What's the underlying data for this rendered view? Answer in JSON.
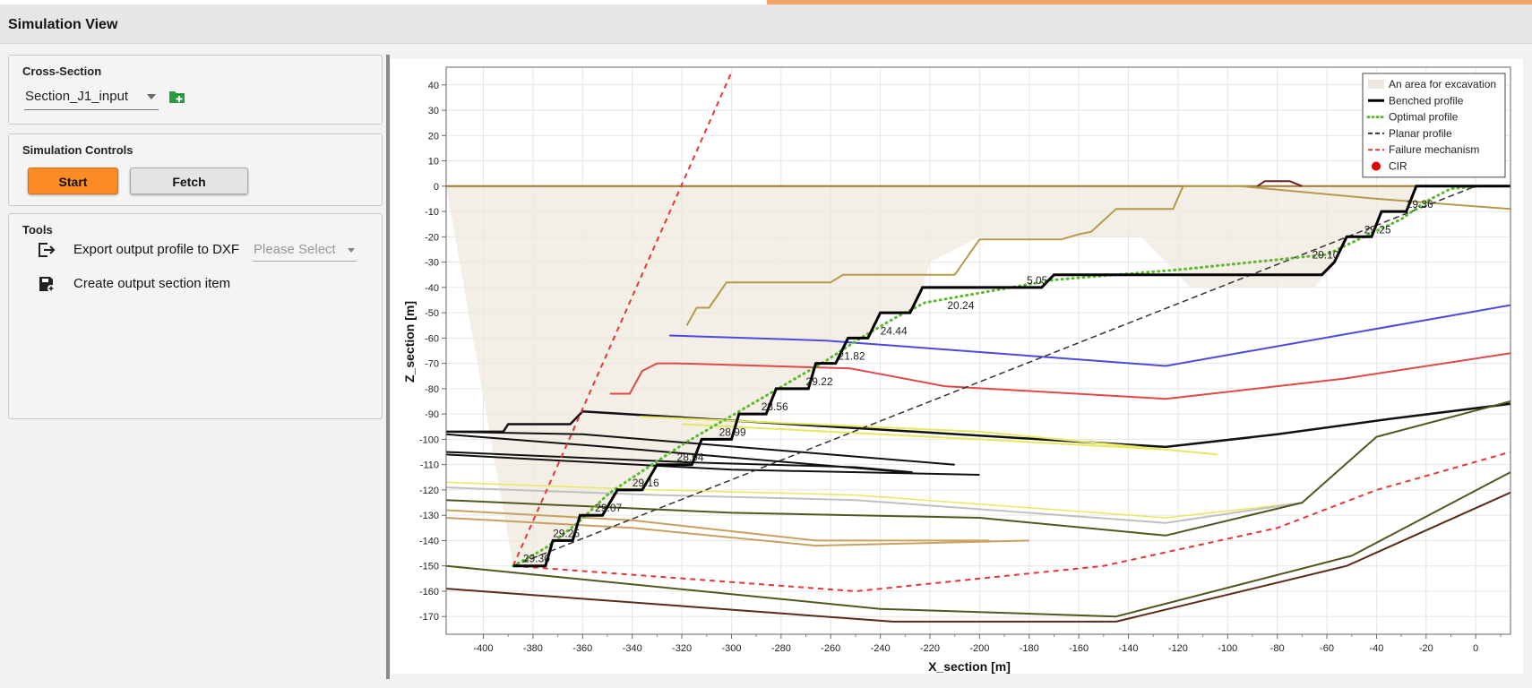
{
  "app": {
    "title": "Simulation View"
  },
  "cross_section": {
    "title": "Cross-Section",
    "selected": "Section_J1_input",
    "add_icon": "folder-add-icon"
  },
  "simulation_controls": {
    "title": "Simulation Controls",
    "start_label": "Start",
    "fetch_label": "Fetch",
    "accent": "#fb8c26"
  },
  "tools": {
    "title": "Tools",
    "export_label": "Export output profile to DXF",
    "export_placeholder": "Please Select",
    "create_label": "Create output section item",
    "export_icon": "export-icon",
    "create_icon": "save-icon"
  },
  "chart_data": {
    "type": "line",
    "xlabel": "X_section [m]",
    "ylabel": "Z_section [m]",
    "xlim": [
      -415,
      14
    ],
    "ylim": [
      -177,
      47
    ],
    "xticks": [
      -400,
      -380,
      -360,
      -340,
      -320,
      -300,
      -280,
      -260,
      -240,
      -220,
      -200,
      -180,
      -160,
      -140,
      -120,
      -100,
      -80,
      -60,
      -40,
      -20,
      0
    ],
    "yticks": [
      40,
      30,
      20,
      10,
      0,
      -10,
      -20,
      -30,
      -40,
      -50,
      -60,
      -70,
      -80,
      -90,
      -100,
      -110,
      -120,
      -130,
      -140,
      -150,
      -160,
      -170
    ],
    "grid": true,
    "legend_position": "top-right",
    "legend": [
      {
        "name": "An area for excavation",
        "style": "area",
        "color": "#efe8de"
      },
      {
        "name": "Benched profile",
        "style": "thick-solid",
        "color": "#000000"
      },
      {
        "name": "Optimal profile",
        "style": "dotted",
        "color": "#5cb82c"
      },
      {
        "name": "Planar profile",
        "style": "dashed",
        "color": "#333333"
      },
      {
        "name": "Failure mechanism",
        "style": "dashed",
        "color": "#e83434"
      },
      {
        "name": "CIR",
        "style": "marker",
        "color": "#e30000"
      }
    ],
    "excavation_area": [
      [
        -415,
        0
      ],
      [
        -388,
        -150
      ],
      [
        -375,
        -150
      ],
      [
        -372,
        -140
      ],
      [
        -364,
        -140
      ],
      [
        -361,
        -130
      ],
      [
        -352,
        -130
      ],
      [
        -346,
        -120
      ],
      [
        -336,
        -120
      ],
      [
        -330,
        -110
      ],
      [
        -316,
        -110
      ],
      [
        -312,
        -100
      ],
      [
        -300,
        -100
      ],
      [
        -297,
        -90
      ],
      [
        -286,
        -90
      ],
      [
        -282,
        -80
      ],
      [
        -269,
        -80
      ],
      [
        -266,
        -70
      ],
      [
        -258,
        -70
      ],
      [
        -253,
        -60
      ],
      [
        -245,
        -60
      ],
      [
        -240,
        -50
      ],
      [
        -228,
        -50
      ],
      [
        -223,
        -40
      ],
      [
        -220,
        -30
      ],
      [
        -200,
        -20
      ],
      [
        -135,
        -20
      ],
      [
        -115,
        -40
      ],
      [
        -65,
        -40
      ],
      [
        -57,
        -30
      ],
      [
        -52,
        -20
      ],
      [
        -42,
        -20
      ],
      [
        -38,
        -10
      ],
      [
        -28,
        -10
      ],
      [
        -24,
        0
      ],
      [
        -415,
        0
      ]
    ],
    "benched_profile": [
      [
        -388,
        -150
      ],
      [
        -375,
        -150
      ],
      [
        -372,
        -140
      ],
      [
        -364,
        -140
      ],
      [
        -361,
        -130
      ],
      [
        -352,
        -130
      ],
      [
        -346,
        -120
      ],
      [
        -336,
        -120
      ],
      [
        -330,
        -110
      ],
      [
        -316,
        -110
      ],
      [
        -312,
        -100
      ],
      [
        -300,
        -100
      ],
      [
        -297,
        -90
      ],
      [
        -286,
        -90
      ],
      [
        -282,
        -80
      ],
      [
        -269,
        -80
      ],
      [
        -266,
        -70
      ],
      [
        -258,
        -70
      ],
      [
        -253,
        -60
      ],
      [
        -245,
        -60
      ],
      [
        -240,
        -50
      ],
      [
        -228,
        -50
      ],
      [
        -223,
        -40
      ],
      [
        -175,
        -40
      ],
      [
        -170,
        -35
      ],
      [
        -62,
        -35
      ],
      [
        -57,
        -30
      ],
      [
        -52,
        -20
      ],
      [
        -42,
        -20
      ],
      [
        -38,
        -10
      ],
      [
        -28,
        -10
      ],
      [
        -24,
        0
      ],
      [
        0,
        0
      ],
      [
        14,
        0
      ]
    ],
    "optimal_profile": [
      [
        -388,
        -150
      ],
      [
        -375,
        -143
      ],
      [
        -362,
        -133
      ],
      [
        -349,
        -121
      ],
      [
        -332,
        -110
      ],
      [
        -318,
        -101
      ],
      [
        -304,
        -93
      ],
      [
        -290,
        -85
      ],
      [
        -276,
        -77
      ],
      [
        -262,
        -69
      ],
      [
        -248,
        -60
      ],
      [
        -234,
        -52
      ],
      [
        -222,
        -46
      ],
      [
        -170,
        -37
      ],
      [
        -120,
        -33
      ],
      [
        -80,
        -29
      ],
      [
        -60,
        -27
      ],
      [
        -45,
        -20
      ],
      [
        -30,
        -13
      ],
      [
        -20,
        -6
      ],
      [
        -10,
        -1
      ],
      [
        2,
        0
      ],
      [
        14,
        0
      ]
    ],
    "planar_profile": [
      [
        -388,
        -150
      ],
      [
        0,
        0
      ]
    ],
    "failure_mechanism": [
      [
        [
          -388,
          -150
        ],
        [
          -300,
          45
        ]
      ],
      [
        [
          -388,
          -150
        ],
        [
          -250,
          -160
        ],
        [
          -150,
          -150
        ],
        [
          -80,
          -135
        ],
        [
          -40,
          -120
        ],
        [
          14,
          -105
        ]
      ]
    ],
    "bench_labels": [
      {
        "x": -384,
        "y": -150,
        "text": "29.30"
      },
      {
        "x": -372,
        "y": -140,
        "text": "29.25"
      },
      {
        "x": -355,
        "y": -130,
        "text": "29.07"
      },
      {
        "x": -340,
        "y": -120,
        "text": "29.16"
      },
      {
        "x": -322,
        "y": -110,
        "text": "28.94"
      },
      {
        "x": -305,
        "y": -100,
        "text": "28.99"
      },
      {
        "x": -288,
        "y": -90,
        "text": "28.56"
      },
      {
        "x": -270,
        "y": -80,
        "text": "29.22"
      },
      {
        "x": -257,
        "y": -70,
        "text": "21.82"
      },
      {
        "x": -240,
        "y": -60,
        "text": "24.44"
      },
      {
        "x": -213,
        "y": -50,
        "text": "20.24"
      },
      {
        "x": -181,
        "y": -40,
        "text": "5.05"
      },
      {
        "x": -66,
        "y": -30,
        "text": "29.10"
      },
      {
        "x": -45,
        "y": -20,
        "text": "29.25"
      },
      {
        "x": -28,
        "y": -10,
        "text": "29.36"
      }
    ],
    "layers": [
      {
        "color": "#a0782c",
        "w": 2,
        "pts": [
          [
            -415,
            0
          ],
          [
            14,
            0
          ]
        ]
      },
      {
        "color": "#b59a4a",
        "w": 2,
        "pts": [
          [
            -318,
            -55
          ],
          [
            -314,
            -48
          ],
          [
            -309,
            -48
          ],
          [
            -302,
            -38
          ],
          [
            -260,
            -38
          ],
          [
            -255,
            -35
          ],
          [
            -210,
            -35
          ],
          [
            -200,
            -21
          ],
          [
            -167,
            -21
          ],
          [
            -160,
            -19
          ],
          [
            -155,
            -18
          ],
          [
            -145,
            -9
          ],
          [
            -122,
            -9
          ],
          [
            -118,
            0
          ],
          [
            -95,
            0
          ],
          [
            -40,
            -5
          ],
          [
            14,
            -9
          ]
        ]
      },
      {
        "color": "#4a4ae0",
        "w": 2,
        "pts": [
          [
            -325,
            -59
          ],
          [
            -262,
            -61
          ],
          [
            -125,
            -71
          ],
          [
            14,
            -47
          ]
        ]
      },
      {
        "color": "#e04848",
        "w": 2,
        "pts": [
          [
            -349,
            -82
          ],
          [
            -341,
            -82
          ],
          [
            -336,
            -73
          ],
          [
            -330,
            -70
          ],
          [
            -322,
            -70
          ],
          [
            -252,
            -72
          ],
          [
            -214,
            -79
          ],
          [
            -125,
            -84
          ],
          [
            -53,
            -76
          ],
          [
            14,
            -66
          ]
        ]
      },
      {
        "color": "#111111",
        "w": 2.5,
        "pts": [
          [
            -415,
            -97
          ],
          [
            -392,
            -97
          ],
          [
            -390,
            -94
          ],
          [
            -365,
            -94
          ],
          [
            -360,
            -89
          ],
          [
            -125,
            -103
          ],
          [
            -80,
            -98
          ],
          [
            -35,
            -92
          ],
          [
            14,
            -86
          ]
        ]
      },
      {
        "color": "#111111",
        "w": 2,
        "pts": [
          [
            -415,
            -97
          ],
          [
            -360,
            -98
          ],
          [
            -210,
            -110
          ]
        ]
      },
      {
        "color": "#111111",
        "w": 2,
        "pts": [
          [
            -415,
            -98
          ],
          [
            -350,
            -103
          ],
          [
            -230,
            -113
          ]
        ]
      },
      {
        "color": "#111111",
        "w": 2,
        "pts": [
          [
            -415,
            -105
          ],
          [
            -320,
            -109
          ],
          [
            -250,
            -111
          ],
          [
            -227,
            -113
          ]
        ]
      },
      {
        "color": "#111111",
        "w": 2,
        "pts": [
          [
            -415,
            -106
          ],
          [
            -300,
            -112
          ],
          [
            -200,
            -114
          ]
        ]
      },
      {
        "color": "#e8e860",
        "w": 2,
        "pts": [
          [
            -337,
            -91
          ],
          [
            -200,
            -97
          ],
          [
            -104,
            -106
          ]
        ]
      },
      {
        "color": "#e8e860",
        "w": 2,
        "pts": [
          [
            -320,
            -94
          ],
          [
            -200,
            -100
          ],
          [
            -125,
            -104
          ]
        ]
      },
      {
        "color": "#e8e860",
        "w": 1.5,
        "pts": [
          [
            -415,
            -117
          ],
          [
            -330,
            -120
          ],
          [
            -250,
            -122
          ],
          [
            -125,
            -131
          ],
          [
            -70,
            -125
          ]
        ]
      },
      {
        "color": "#c0c0c0",
        "w": 2,
        "pts": [
          [
            -415,
            -119
          ],
          [
            -330,
            -122
          ],
          [
            -250,
            -124
          ],
          [
            -125,
            -133
          ],
          [
            -70,
            -125
          ]
        ]
      },
      {
        "color": "#555520",
        "w": 2,
        "pts": [
          [
            -415,
            -124
          ],
          [
            -300,
            -129
          ],
          [
            -200,
            -131
          ],
          [
            -125,
            -138
          ],
          [
            -70,
            -125
          ],
          [
            -40,
            -99
          ],
          [
            14,
            -85
          ]
        ]
      },
      {
        "color": "#c8a060",
        "w": 2,
        "pts": [
          [
            -415,
            -131
          ],
          [
            -340,
            -135
          ],
          [
            -266,
            -142
          ],
          [
            -180,
            -140
          ]
        ]
      },
      {
        "color": "#c8a060",
        "w": 2,
        "pts": [
          [
            -415,
            -128
          ],
          [
            -340,
            -132
          ],
          [
            -266,
            -140
          ],
          [
            -196,
            -140
          ]
        ]
      },
      {
        "color": "#555520",
        "w": 2,
        "pts": [
          [
            -415,
            -150
          ],
          [
            -240,
            -167
          ],
          [
            -145,
            -170
          ],
          [
            -50,
            -146
          ],
          [
            14,
            -113
          ]
        ]
      },
      {
        "color": "#5a2a1a",
        "w": 2,
        "pts": [
          [
            -415,
            -159
          ],
          [
            -235,
            -172
          ],
          [
            -145,
            -172
          ],
          [
            -52,
            -150
          ],
          [
            14,
            -121
          ]
        ]
      },
      {
        "color": "#6a2020",
        "w": 2,
        "pts": [
          [
            -88,
            0
          ],
          [
            -85,
            2
          ],
          [
            -75,
            2
          ],
          [
            -70,
            0
          ]
        ]
      }
    ]
  }
}
